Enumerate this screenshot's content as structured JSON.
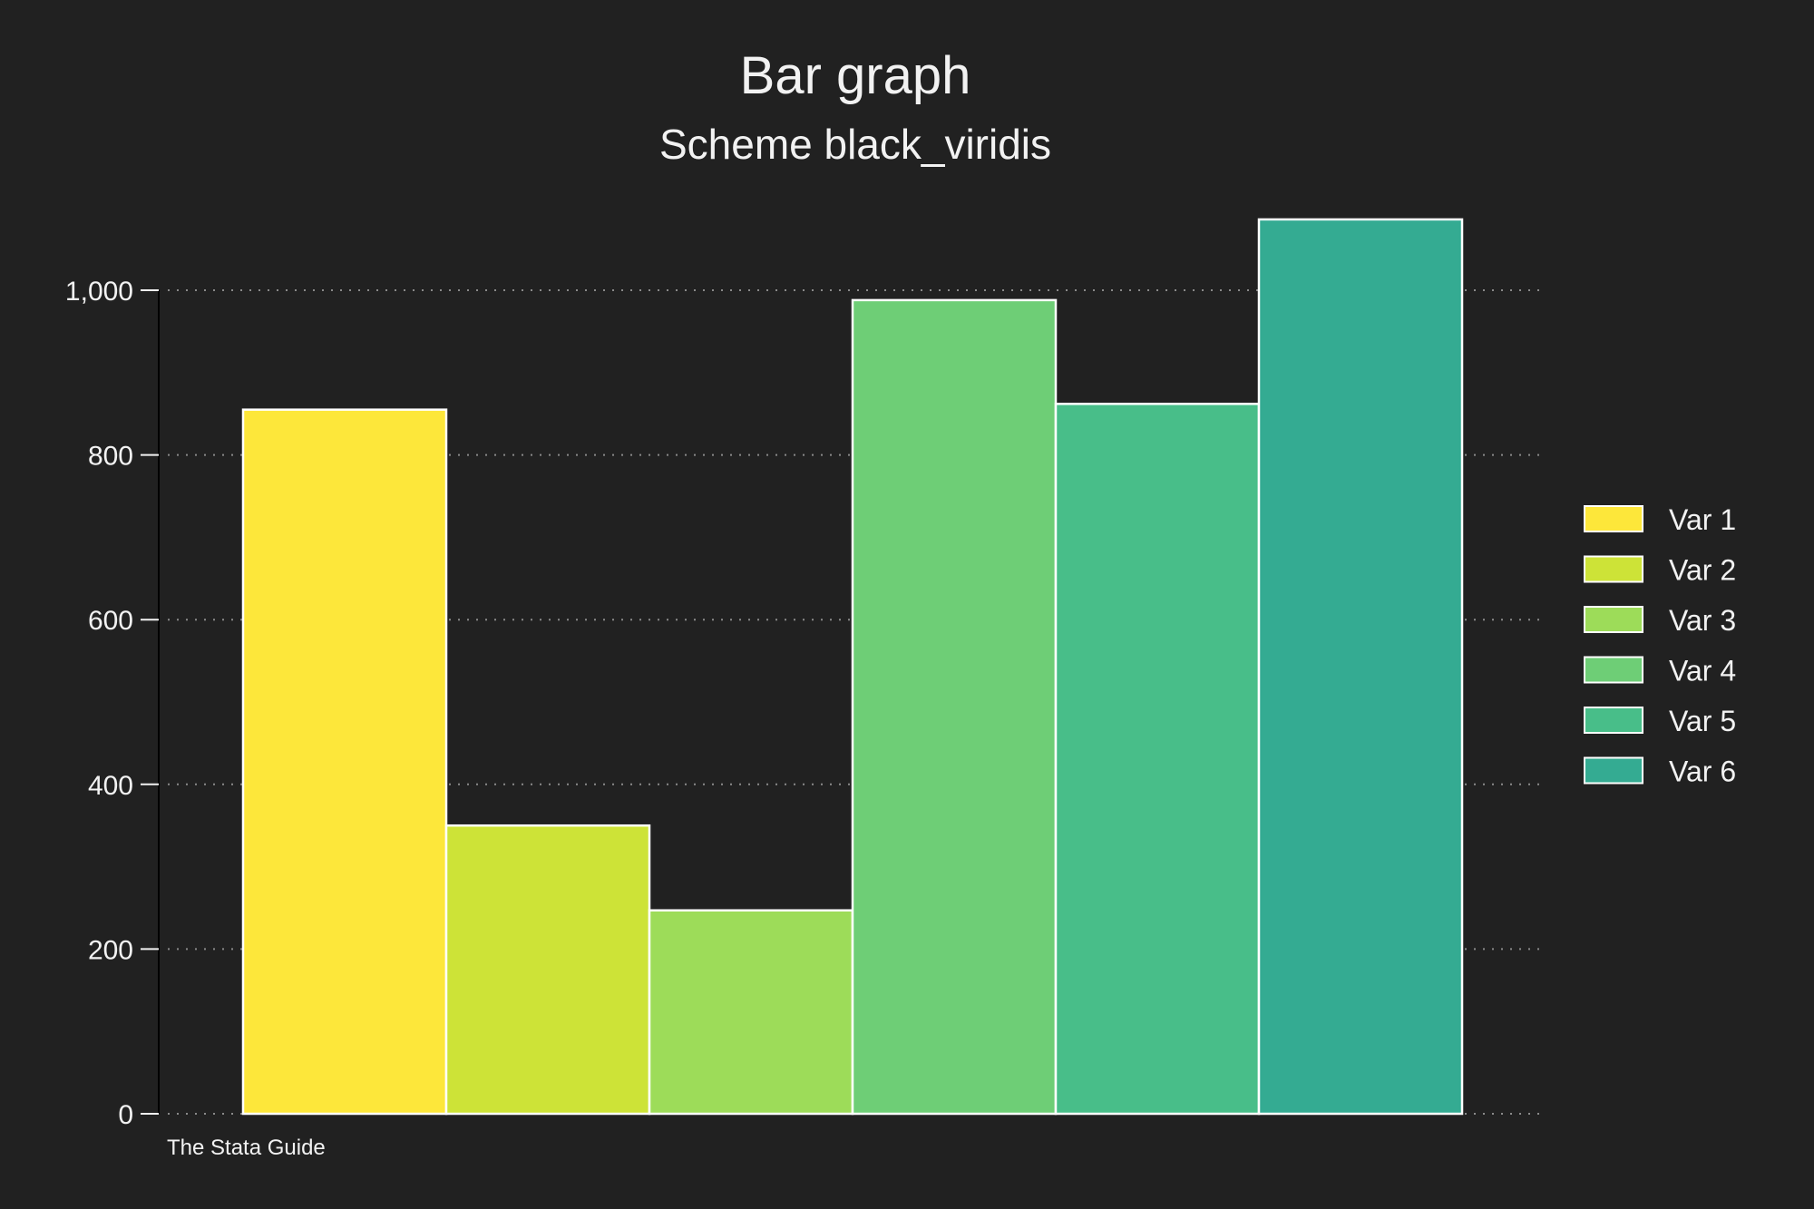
{
  "chart_data": {
    "type": "bar",
    "title": "Bar graph",
    "subtitle": "Scheme black_viridis",
    "note": "The Stata Guide",
    "xlabel": "",
    "ylabel": "",
    "ylim": [
      0,
      1090
    ],
    "y_ticks": [
      0,
      200,
      400,
      600,
      800,
      1000
    ],
    "y_tick_labels": [
      "0",
      "200",
      "400",
      "600",
      "800",
      "1,000"
    ],
    "grid": true,
    "legend_position": "right",
    "series": [
      {
        "name": "Var 1",
        "values": [
          855
        ],
        "color": "#FDE73A"
      },
      {
        "name": "Var 2",
        "values": [
          350
        ],
        "color": "#CDE337"
      },
      {
        "name": "Var 3",
        "values": [
          247
        ],
        "color": "#9DDC59"
      },
      {
        "name": "Var 4",
        "values": [
          988
        ],
        "color": "#6ECE76"
      },
      {
        "name": "Var 5",
        "values": [
          862
        ],
        "color": "#48BE89"
      },
      {
        "name": "Var 6",
        "values": [
          1086
        ],
        "color": "#34AB92"
      }
    ]
  },
  "colors": {
    "background": "#212121",
    "text": "#f2f2f2",
    "bar_outline": "#ffffff",
    "grid": "#8a8a8a",
    "axis": "#000000"
  }
}
